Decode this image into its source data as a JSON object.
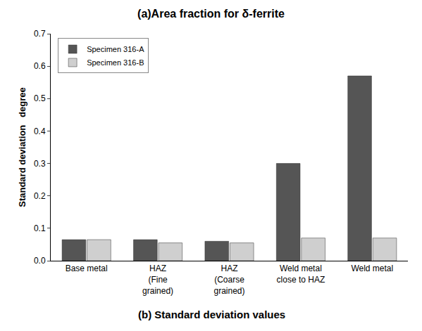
{
  "chart_data": {
    "type": "bar",
    "title": "(a)Area fraction for δ-ferrite",
    "annotations": [
      "(b) Standard deviation values"
    ],
    "y_label": "Standard deviation   degree",
    "categories": [
      "Base metal",
      "HAZ (Fine grained)",
      "HAZ (Coarse grained)",
      "Weld metal close to HAZ",
      "Weld metal"
    ],
    "series": [
      {
        "name": "Specimen 316-A",
        "color": "#555555",
        "values": [
          0.065,
          0.065,
          0.06,
          0.3,
          0.57
        ]
      },
      {
        "name": "Specimen 316-B",
        "color": "#cfcfcf",
        "values": [
          0.065,
          0.055,
          0.055,
          0.07,
          0.07
        ]
      }
    ],
    "ylim": [
      0,
      0.7
    ],
    "yticks": [
      {
        "value": 0,
        "label": "0.0"
      },
      0.1,
      0.2,
      0.3,
      0.4,
      0.5,
      0.6,
      0.7
    ],
    "grid": false,
    "legend": "top-left"
  }
}
